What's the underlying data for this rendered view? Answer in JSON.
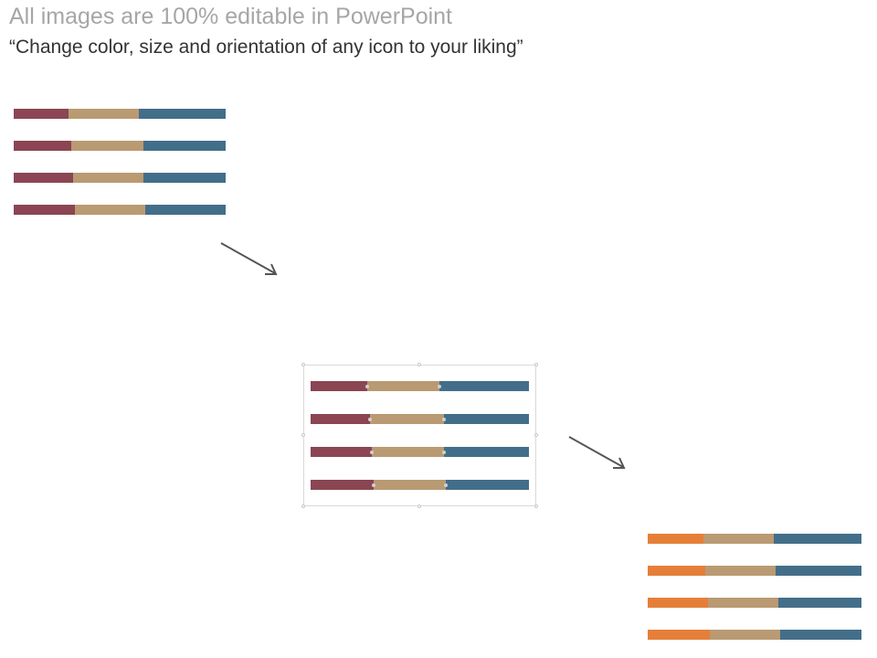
{
  "slide": {
    "title": "All images are 100% editable in PowerPoint",
    "subtitle": "“Change color, size and orientation of any icon to your liking”"
  },
  "colors": {
    "maroon": "#8b4553",
    "tan": "#b99a72",
    "steel_blue": "#436e8a",
    "orange": "#e57f38",
    "arrow": "#555555"
  },
  "bar_groups": [
    {
      "name": "original",
      "rows": [
        [
          0.26,
          0.33,
          0.41
        ],
        [
          0.27,
          0.34,
          0.39
        ],
        [
          0.28,
          0.33,
          0.39
        ],
        [
          0.29,
          0.33,
          0.38
        ]
      ],
      "palette": [
        "maroon",
        "tan",
        "steel_blue"
      ],
      "selected": false
    },
    {
      "name": "selected",
      "rows": [
        [
          0.26,
          0.33,
          0.41
        ],
        [
          0.27,
          0.34,
          0.39
        ],
        [
          0.28,
          0.33,
          0.39
        ],
        [
          0.29,
          0.33,
          0.38
        ]
      ],
      "palette": [
        "maroon",
        "tan",
        "steel_blue"
      ],
      "selected": true
    },
    {
      "name": "recolored",
      "rows": [
        [
          0.26,
          0.33,
          0.41
        ],
        [
          0.27,
          0.33,
          0.4
        ],
        [
          0.28,
          0.33,
          0.39
        ],
        [
          0.29,
          0.33,
          0.38
        ]
      ],
      "palette": [
        "orange",
        "tan",
        "steel_blue"
      ],
      "selected": false
    }
  ]
}
